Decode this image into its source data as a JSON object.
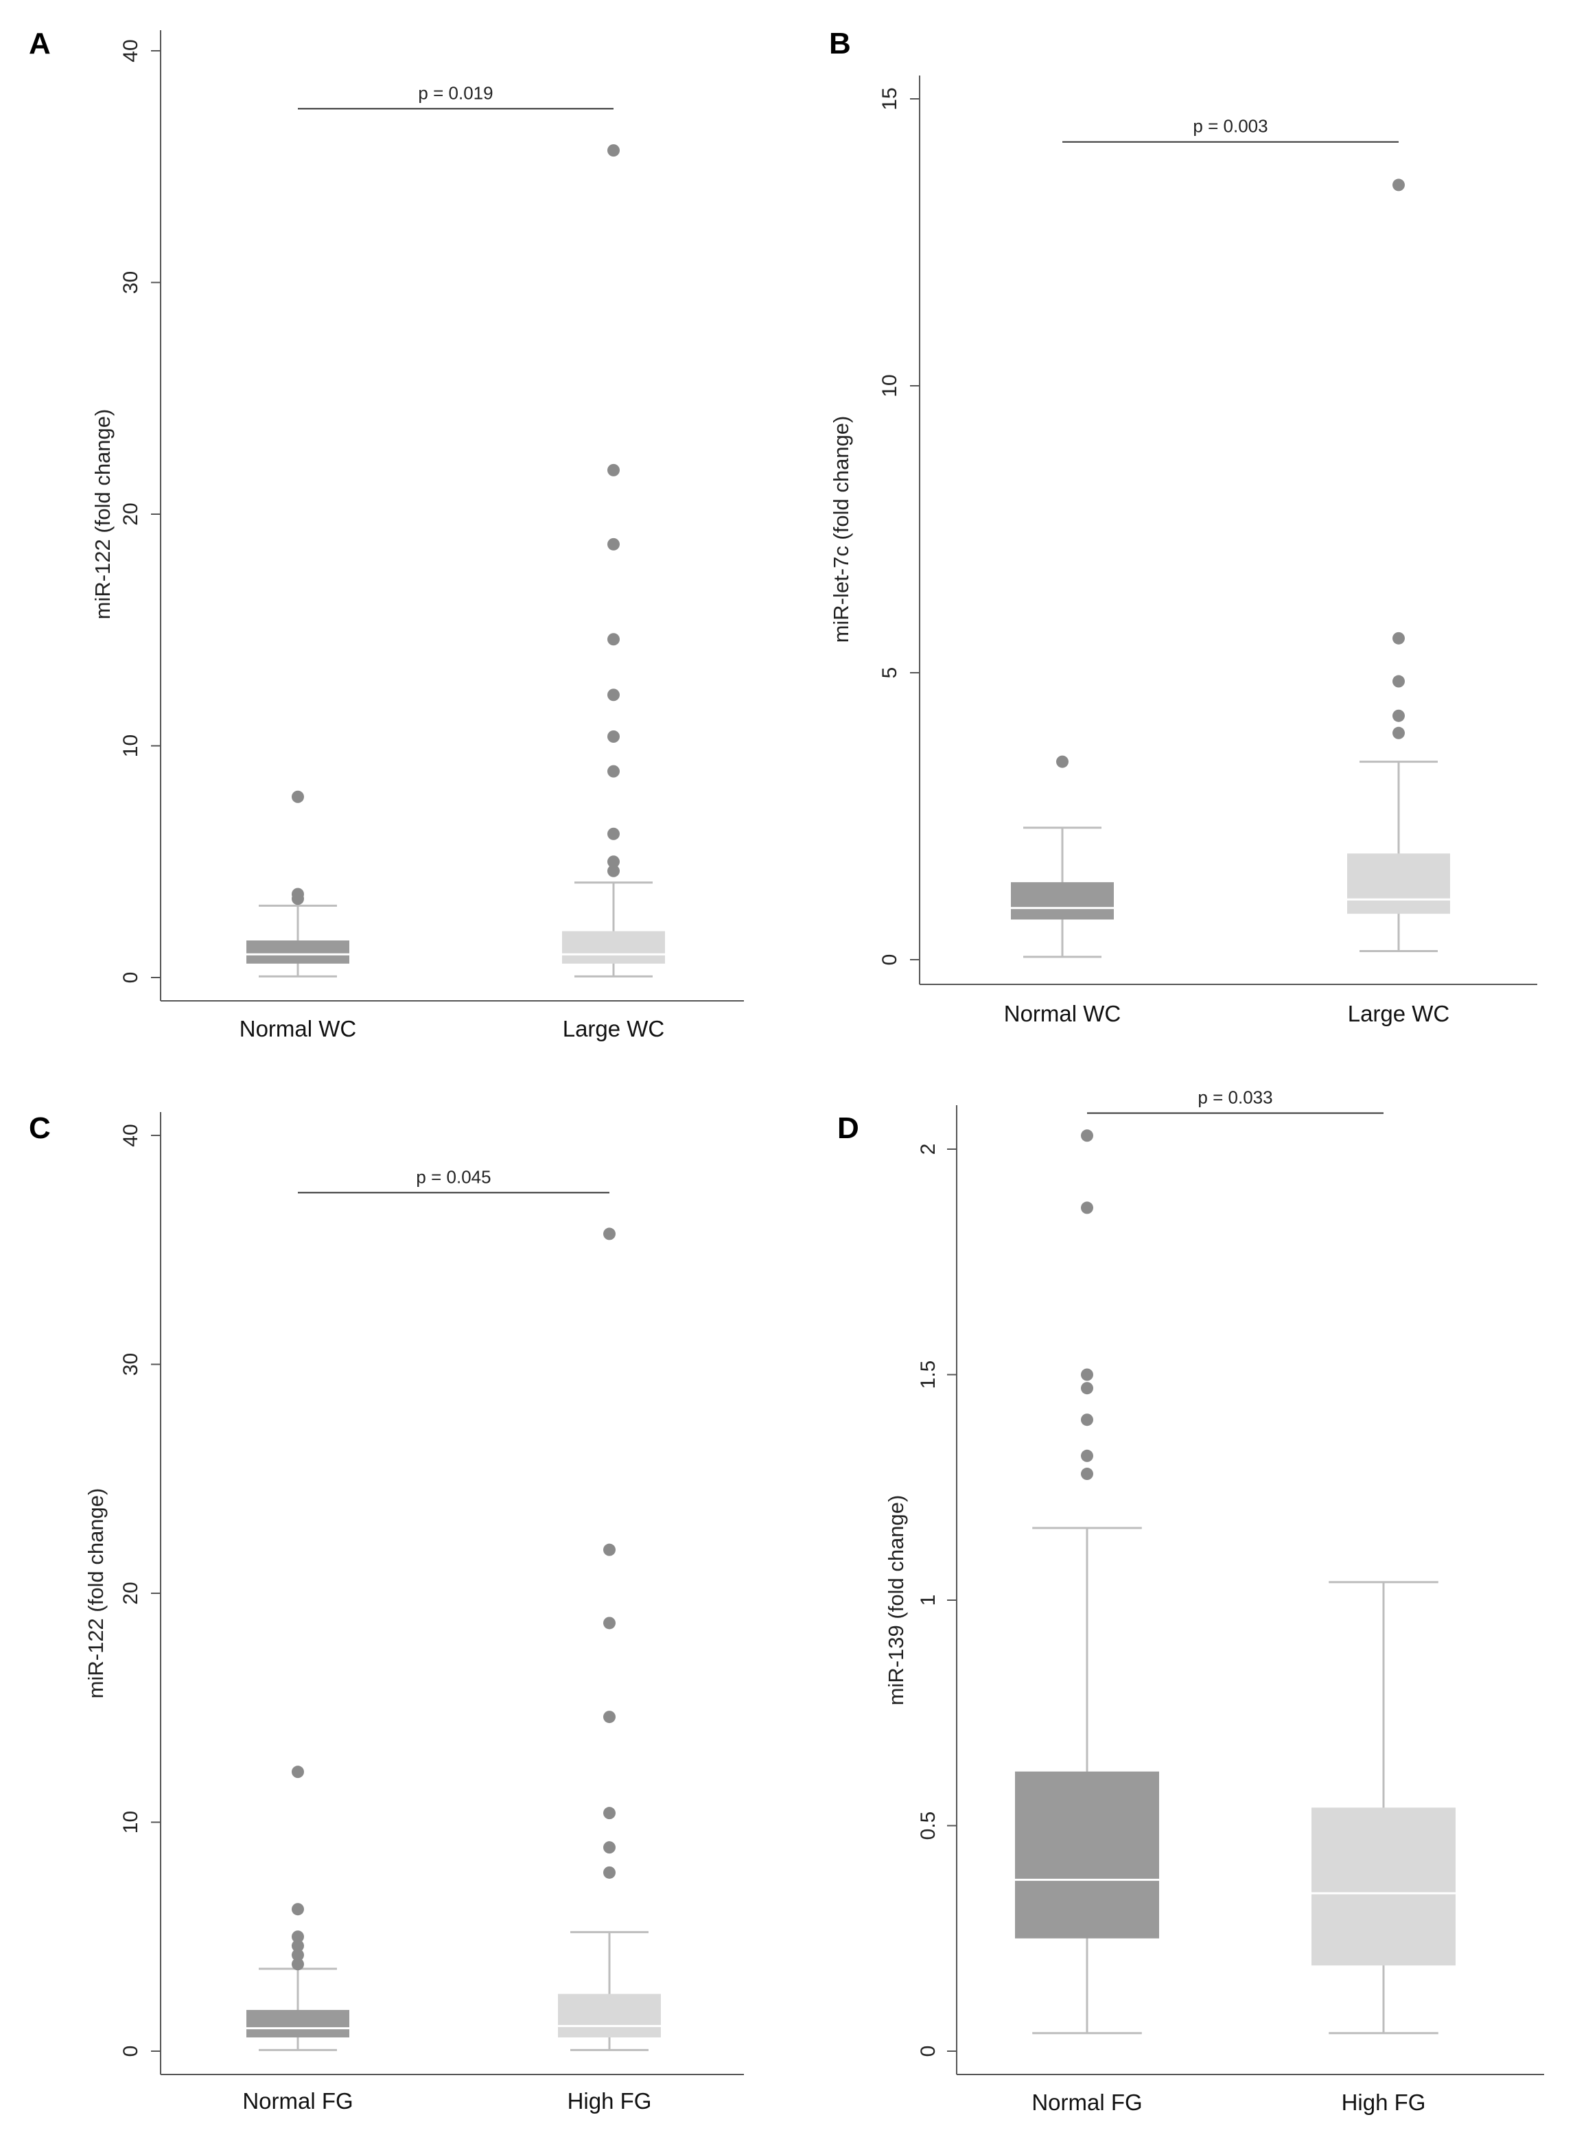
{
  "colors": {
    "box_group1": "#9a9a9a",
    "box_group2": "#d9d9d9",
    "whisker": "#bdbdbd",
    "outlier_group1": "#8a8a8a",
    "outlier_group2": "#8a8a8a",
    "axis": "#555555",
    "sig_line": "#333333"
  },
  "chart_data": [
    {
      "type": "box",
      "panel": "A",
      "categories": [
        "Normal WC",
        "Large WC"
      ],
      "ylabel": "miR-122 (fold change)",
      "ylim": [
        0,
        40
      ],
      "yticks": [
        0,
        10,
        20,
        30,
        40
      ],
      "yticklabels": [
        "0",
        "10",
        "20",
        "30",
        "40"
      ],
      "boxes": [
        {
          "q1": 0.6,
          "median": 1.0,
          "q3": 1.6,
          "whisker_low": 0.05,
          "whisker_high": 3.1,
          "outliers": [
            3.4,
            3.6,
            7.8
          ]
        },
        {
          "q1": 0.6,
          "median": 1.0,
          "q3": 2.0,
          "whisker_low": 0.05,
          "whisker_high": 4.1,
          "outliers": [
            4.6,
            5.0,
            6.2,
            8.9,
            10.4,
            12.2,
            14.6,
            18.7,
            21.9,
            35.7
          ]
        }
      ],
      "pvalue": "p = 0.019",
      "pvalue_y": 37.5
    },
    {
      "type": "box",
      "panel": "B",
      "categories": [
        "Normal WC",
        "Large WC"
      ],
      "ylabel": "miR-let-7c (fold change)",
      "ylim": [
        0,
        15
      ],
      "yticks": [
        0,
        5,
        10,
        15
      ],
      "yticklabels": [
        "0",
        "5",
        "10",
        "15"
      ],
      "boxes": [
        {
          "q1": 0.7,
          "median": 0.9,
          "q3": 1.35,
          "whisker_low": 0.05,
          "whisker_high": 2.3,
          "outliers": [
            3.45
          ]
        },
        {
          "q1": 0.8,
          "median": 1.05,
          "q3": 1.85,
          "whisker_low": 0.15,
          "whisker_high": 3.45,
          "outliers": [
            3.95,
            4.25,
            4.85,
            5.6,
            13.5
          ]
        }
      ],
      "pvalue": "p = 0.003",
      "pvalue_y": 14.25
    },
    {
      "type": "box",
      "panel": "C",
      "categories": [
        "Normal FG",
        "High FG"
      ],
      "ylabel": "miR-122 (fold change)",
      "ylim": [
        0,
        40
      ],
      "yticks": [
        0,
        10,
        20,
        30,
        40
      ],
      "yticklabels": [
        "0",
        "10",
        "20",
        "30",
        "40"
      ],
      "boxes": [
        {
          "q1": 0.6,
          "median": 1.0,
          "q3": 1.8,
          "whisker_low": 0.05,
          "whisker_high": 3.6,
          "outliers": [
            3.8,
            4.2,
            4.6,
            5.0,
            6.2,
            12.2
          ]
        },
        {
          "q1": 0.6,
          "median": 1.1,
          "q3": 2.5,
          "whisker_low": 0.05,
          "whisker_high": 5.2,
          "outliers": [
            7.8,
            8.9,
            10.4,
            14.6,
            18.7,
            21.9,
            35.7
          ]
        }
      ],
      "pvalue": "p = 0.045",
      "pvalue_y": 37.5
    },
    {
      "type": "box",
      "panel": "D",
      "categories": [
        "Normal FG",
        "High FG"
      ],
      "ylabel": "miR-139 (fold change)",
      "ylim": [
        0,
        2
      ],
      "yticks": [
        0,
        0.5,
        1,
        1.5,
        2
      ],
      "yticklabels": [
        "0",
        "0.5",
        "1",
        "1.5",
        "2"
      ],
      "boxes": [
        {
          "q1": 0.25,
          "median": 0.38,
          "q3": 0.62,
          "whisker_low": 0.04,
          "whisker_high": 1.16,
          "outliers": [
            1.28,
            1.32,
            1.4,
            1.47,
            1.5,
            1.87,
            2.03
          ]
        },
        {
          "q1": 0.19,
          "median": 0.35,
          "q3": 0.54,
          "whisker_low": 0.04,
          "whisker_high": 1.04,
          "outliers": []
        }
      ],
      "pvalue": "p = 0.033",
      "pvalue_y": 2.08
    }
  ]
}
